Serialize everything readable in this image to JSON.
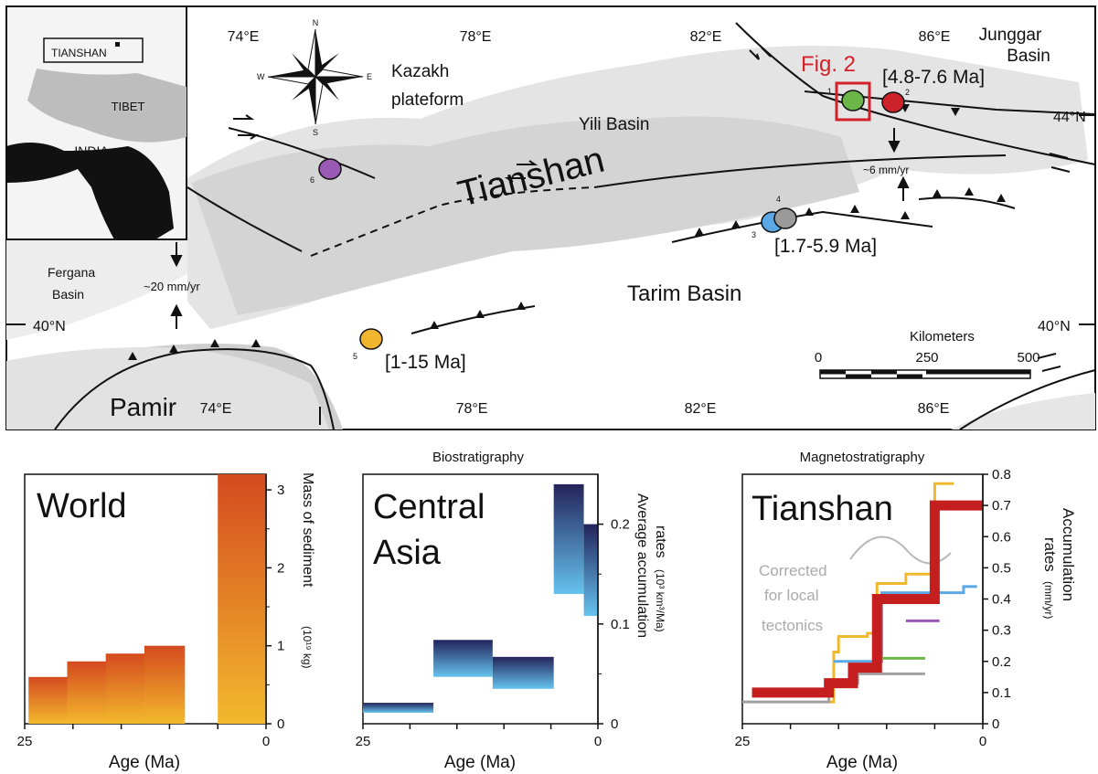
{
  "map": {
    "lon_top": [
      "74°E",
      "78°E",
      "82°E",
      "86°E"
    ],
    "lon_bottom": [
      "74°E",
      "78°E",
      "82°E",
      "86°E"
    ],
    "lat": [
      "44°N",
      "40°N",
      "40°N"
    ],
    "places": {
      "junggar": "Junggar",
      "junggar2": "Basin",
      "kazakh": "Kazakh",
      "kazakh2": "plateform",
      "yili": "Yili Basin",
      "tianshan": "Tianshan",
      "tarim": "Tarim Basin",
      "fergana": "Fergana",
      "fergana2": "Basin",
      "pamir": "Pamir"
    },
    "fig_label": "Fig. 2",
    "ranges": [
      "[4.8-7.6 Ma]",
      "[1.7-5.9 Ma]",
      "[1-15 Ma]"
    ],
    "rates": [
      "~6 mm/yr",
      "~20 mm/yr"
    ],
    "compass": {
      "n": "N",
      "s": "S",
      "e": "E",
      "w": "W"
    },
    "scale": {
      "title": "Kilometers",
      "ticks": [
        "0",
        "250",
        "500"
      ]
    },
    "inset": {
      "box": "TIANSHAN",
      "tibet": "TIBET",
      "india": "INDIA"
    },
    "sites": [
      {
        "num": "1",
        "color": "#6ab648"
      },
      {
        "num": "2",
        "color": "#cc2229"
      },
      {
        "num": "3",
        "color": "#5aa9e6"
      },
      {
        "num": "4",
        "color": "#9a9a9a"
      },
      {
        "num": "5",
        "color": "#f2b62e"
      },
      {
        "num": "6",
        "color": "#9b59b6"
      }
    ]
  },
  "panels": {
    "world": {
      "header": "",
      "big": "World",
      "xlabel": "Age (Ma)",
      "ylabel": "Mass of sediment",
      "yunit": "(10¹⁹ kg)"
    },
    "asia": {
      "header": "Biostratigraphy",
      "big": "Central",
      "big2": "Asia",
      "xlabel": "Age (Ma)",
      "ylabel": "Average accumulation",
      "ylabel2": "rates",
      "yunit": "(10³ km³/Ma)"
    },
    "tianshan": {
      "header": "Magnetostratigraphy",
      "big": "Tianshan",
      "xlabel": "Age (Ma)",
      "ylabel": "Accumulation",
      "ylabel2": "rates",
      "yunit": "(mm/yr)",
      "note": [
        "Corrected",
        "for local",
        "tectonics"
      ]
    }
  },
  "chart_data": [
    {
      "type": "bar",
      "x": [
        22.5,
        18.5,
        14.5,
        10.5,
        2.5
      ],
      "values": [
        0.6,
        0.8,
        0.9,
        1.0,
        3.2
      ],
      "xlim": [
        25,
        0
      ],
      "ylim": [
        0,
        3.2
      ],
      "xticks": [
        "25",
        "0"
      ],
      "yticks": [
        "0",
        "1",
        "2",
        "3"
      ],
      "xlabel": "Age (Ma)",
      "ylabel": "Mass of sediment (10¹⁹ kg)",
      "colors": {
        "top": "#d44a1f",
        "bottom": "#f3b92d"
      }
    },
    {
      "type": "bar",
      "boxes": [
        {
          "x0": 25,
          "x1": 17.5,
          "y0": 0.011,
          "y1": 0.021
        },
        {
          "x0": 17.5,
          "x1": 11.2,
          "y0": 0.047,
          "y1": 0.084
        },
        {
          "x0": 11.2,
          "x1": 4.7,
          "y0": 0.035,
          "y1": 0.067
        },
        {
          "x0": 4.7,
          "x1": 1.5,
          "y0": 0.13,
          "y1": 0.24
        },
        {
          "x0": 1.5,
          "x1": 0,
          "y0": 0.108,
          "y1": 0.2
        }
      ],
      "xlim": [
        25,
        0
      ],
      "ylim": [
        0,
        0.25
      ],
      "xticks": [
        "25",
        "0"
      ],
      "yticks": [
        "0",
        "0.1",
        "0.2"
      ],
      "xlabel": "Age (Ma)",
      "ylabel": "Average accumulation rates (10³ km³/Ma)",
      "colors": {
        "top": "#23235a",
        "bottom": "#66c3ee"
      }
    },
    {
      "type": "line",
      "step_main": [
        [
          24,
          0.1
        ],
        [
          16,
          0.1
        ],
        [
          16,
          0.1
        ],
        [
          16,
          0.1
        ],
        [
          16,
          0.1
        ],
        [
          16,
          0.1
        ],
        [
          16,
          0.1
        ],
        [
          16,
          0.1
        ],
        [
          16,
          0.1
        ],
        [
          16,
          0.1
        ],
        [
          16,
          0.1
        ],
        [
          16,
          0.1
        ],
        [
          16,
          0.1
        ],
        [
          16,
          0.1
        ],
        [
          16,
          0.1
        ],
        [
          16,
          0.1
        ],
        [
          16,
          0.1
        ],
        [
          16,
          0.1
        ],
        [
          16,
          0.1
        ],
        [
          16,
          0.1
        ],
        [
          16,
          0.1
        ],
        [
          16,
          0.1
        ],
        [
          16,
          0.1
        ],
        [
          16,
          0.1
        ],
        [
          16,
          0.1
        ],
        [
          16,
          0.1
        ],
        [
          16,
          0.1
        ],
        [
          16,
          0.1
        ],
        [
          16,
          0.1
        ],
        [
          16,
          0.1
        ]
      ],
      "main": [
        [
          24,
          0.1
        ],
        [
          16,
          0.1
        ],
        [
          16,
          0.1
        ],
        [
          16,
          0.1
        ],
        [
          16,
          0.1
        ],
        [
          16,
          0.1
        ],
        [
          16,
          0.1
        ],
        [
          16,
          0.1
        ],
        [
          16,
          0.1
        ],
        [
          16,
          0.1
        ],
        [
          16,
          0.1
        ],
        [
          16,
          0.1
        ],
        [
          16,
          0.1
        ],
        [
          16,
          0.1
        ],
        [
          16,
          0.1
        ],
        [
          16,
          0.1
        ],
        [
          16,
          0.1
        ],
        [
          16,
          0.1
        ],
        [
          16,
          0.1
        ],
        [
          16,
          0.1
        ],
        [
          16,
          0.1
        ],
        [
          16,
          0.1
        ],
        [
          16,
          0.1
        ],
        [
          16,
          0.1
        ],
        [
          16,
          0.1
        ],
        [
          16,
          0.1
        ],
        [
          16,
          0.1
        ],
        [
          16,
          0.1
        ],
        [
          16,
          0.1
        ],
        [
          16,
          0.1
        ]
      ],
      "series": [
        {
          "color": "#f0b82e",
          "points": [
            [
              16,
              0.07
            ],
            [
              15.5,
              0.07
            ],
            [
              15.5,
              0.23
            ],
            [
              15,
              0.23
            ],
            [
              15,
              0.28
            ],
            [
              12,
              0.28
            ],
            [
              12,
              0.29
            ],
            [
              11,
              0.29
            ],
            [
              11,
              0.45
            ],
            [
              8,
              0.45
            ],
            [
              8,
              0.48
            ],
            [
              5,
              0.48
            ],
            [
              5,
              0.77
            ],
            [
              3,
              0.77
            ]
          ]
        },
        {
          "color": "#5aa9e6",
          "points": [
            [
              15.5,
              0.2
            ],
            [
              10.5,
              0.2
            ],
            [
              10.5,
              0.42
            ],
            [
              2,
              0.42
            ],
            [
              2,
              0.44
            ],
            [
              0.6,
              0.44
            ]
          ]
        },
        {
          "color": "#a0a0a0",
          "points": [
            [
              25,
              0.07
            ],
            [
              16,
              0.07
            ],
            [
              16,
              0.13
            ],
            [
              13,
              0.13
            ],
            [
              13,
              0.16
            ],
            [
              6,
              0.16
            ]
          ]
        },
        {
          "color": "#6ab648",
          "points": [
            [
              10.5,
              0.21
            ],
            [
              6,
              0.21
            ]
          ]
        },
        {
          "color": "#9b59b6",
          "points": [
            [
              8,
              0.33
            ],
            [
              4.5,
              0.33
            ]
          ]
        }
      ],
      "red_step": [
        [
          24,
          0.1
        ],
        [
          16,
          0.1
        ],
        [
          16,
          0.1
        ],
        [
          16,
          0.1
        ]
      ],
      "xlim": [
        25,
        0
      ],
      "ylim": [
        0,
        0.8
      ],
      "xticks": [
        "25",
        "20",
        "10",
        "0"
      ],
      "yticks": [
        "0",
        "0.1",
        "0.2",
        "0.3",
        "0.4",
        "0.5",
        "0.6",
        "0.7",
        "0.8"
      ],
      "xlabel": "Age (Ma)",
      "ylabel": "Accumulation rates (mm/yr)",
      "colors": {
        "main": "#c41e1e"
      }
    }
  ]
}
